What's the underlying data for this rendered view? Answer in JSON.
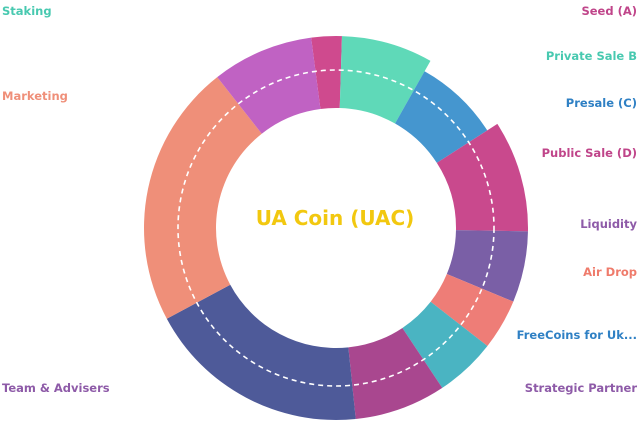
{
  "chart_data": {
    "type": "pie",
    "style": "donut",
    "center_label": "UA Coin (UAC)",
    "series": [
      {
        "name": "Seed (A)",
        "value": 3,
        "color": "#cf4a8e",
        "outer": true
      },
      {
        "name": "Private Sale B",
        "value": 9,
        "color": "#5fd9b8",
        "outer": true
      },
      {
        "name": "Presale (C)",
        "value": 9,
        "color": "#4596cf",
        "outer": false
      },
      {
        "name": "Public Sale (D)",
        "value": 11,
        "color": "#c9498d",
        "outer": true
      },
      {
        "name": "Liquidity",
        "value": 7,
        "color": "#7a5fa6",
        "outer": true
      },
      {
        "name": "Air Drop",
        "value": 5,
        "color": "#ee7d77",
        "outer": true
      },
      {
        "name": "FreeCoins for Uk...",
        "value": 6,
        "color": "#4ab4c2",
        "outer": true
      },
      {
        "name": "Strategic Partner",
        "value": 9,
        "color": "#a9478f",
        "outer": true
      },
      {
        "name": "Team & Advisers",
        "value": 22,
        "color": "#4e5a99",
        "outer": true
      },
      {
        "name": "Marketing",
        "value": 26,
        "color": "#ef8f79",
        "outer": true
      },
      {
        "name": "Staking",
        "value": 10,
        "color": "#c062c3",
        "outer": true
      }
    ]
  },
  "labels": {
    "staking": "Staking",
    "marketing": "Marketing",
    "team": "Team & Advisers",
    "seed": "Seed (A)",
    "private": "Private Sale B",
    "presale": "Presale (C)",
    "public": "Public Sale (D)",
    "liquidity": "Liquidity",
    "airdrop": "Air Drop",
    "freecoins": "FreeCoins for Uk...",
    "strategic": "Strategic Partner"
  },
  "colors": {
    "staking": "#48c9b0",
    "marketing": "#ef8f79",
    "team": "#8e5ba8",
    "seed": "#c0458a",
    "private": "#48c9b0",
    "presale": "#2f80c4",
    "public": "#c0458a",
    "liquidity": "#8e5ba8",
    "airdrop": "#ef7b6b",
    "freecoins": "#2f80c4",
    "strategic": "#8e5ba8",
    "center": "#f2c80f"
  }
}
